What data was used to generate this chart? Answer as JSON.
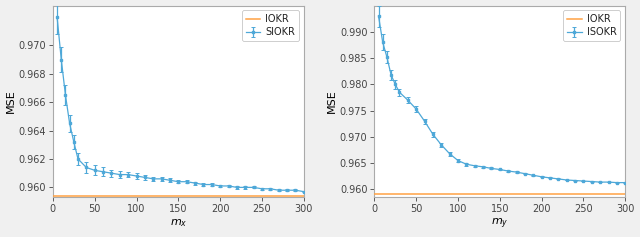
{
  "left": {
    "xlabel": "$m_x$",
    "ylabel": "MSE",
    "legend_labels": [
      "IOKR",
      "SIOKR"
    ],
    "iokr_value": 0.9594,
    "x_range": [
      0,
      300
    ],
    "ylim": [
      0.9593,
      0.9728
    ],
    "yticks": [
      0.96,
      0.962,
      0.964,
      0.966,
      0.968,
      0.97
    ],
    "curve_x": [
      5,
      10,
      15,
      20,
      25,
      30,
      40,
      50,
      60,
      70,
      80,
      90,
      100,
      110,
      120,
      130,
      140,
      150,
      160,
      170,
      180,
      190,
      200,
      210,
      220,
      230,
      240,
      250,
      260,
      270,
      280,
      290,
      300
    ],
    "curve_y": [
      0.972,
      0.969,
      0.9665,
      0.9645,
      0.9632,
      0.962,
      0.9614,
      0.9612,
      0.9611,
      0.961,
      0.9609,
      0.9609,
      0.9608,
      0.9607,
      0.9606,
      0.9606,
      0.9605,
      0.9604,
      0.9604,
      0.9603,
      0.9602,
      0.9602,
      0.9601,
      0.9601,
      0.96,
      0.96,
      0.96,
      0.9599,
      0.9599,
      0.9598,
      0.9598,
      0.9598,
      0.9597
    ],
    "curve_err": [
      0.0012,
      0.0009,
      0.0007,
      0.0006,
      0.0005,
      0.00045,
      0.0004,
      0.00035,
      0.0003,
      0.00025,
      0.00022,
      0.0002,
      0.00018,
      0.00016,
      0.00015,
      0.00014,
      0.00013,
      0.00012,
      0.00011,
      0.0001,
      0.0001,
      9e-05,
      9e-05,
      8e-05,
      8e-05,
      8e-05,
      7e-05,
      7e-05,
      7e-05,
      7e-05,
      7e-05,
      6e-05,
      6e-05
    ]
  },
  "right": {
    "xlabel": "$m_y$",
    "ylabel": "MSE",
    "legend_labels": [
      "IOKR",
      "ISOKR"
    ],
    "iokr_value": 0.9591,
    "x_range": [
      0,
      300
    ],
    "ylim": [
      0.9585,
      0.995
    ],
    "yticks": [
      0.96,
      0.965,
      0.97,
      0.975,
      0.98,
      0.985,
      0.99
    ],
    "curve_x": [
      5,
      10,
      15,
      20,
      25,
      30,
      40,
      50,
      60,
      70,
      80,
      90,
      100,
      110,
      120,
      130,
      140,
      150,
      160,
      170,
      180,
      190,
      200,
      210,
      220,
      230,
      240,
      250,
      260,
      270,
      280,
      290,
      300
    ],
    "curve_y": [
      0.993,
      0.988,
      0.9852,
      0.9818,
      0.98,
      0.9785,
      0.977,
      0.9753,
      0.973,
      0.9705,
      0.9685,
      0.9668,
      0.9655,
      0.9648,
      0.9645,
      0.9643,
      0.964,
      0.9638,
      0.9635,
      0.9633,
      0.963,
      0.9627,
      0.9624,
      0.9622,
      0.962,
      0.9618,
      0.9617,
      0.9616,
      0.9615,
      0.9614,
      0.9614,
      0.9613,
      0.9613
    ],
    "curve_err": [
      0.002,
      0.0015,
      0.0012,
      0.001,
      0.0008,
      0.0007,
      0.0006,
      0.00055,
      0.0005,
      0.00045,
      0.0004,
      0.00035,
      0.0003,
      0.00025,
      0.00022,
      0.0002,
      0.00018,
      0.00016,
      0.00014,
      0.00013,
      0.00012,
      0.00011,
      0.0001,
      0.0001,
      9e-05,
      9e-05,
      8e-05,
      8e-05,
      8e-05,
      7e-05,
      7e-05,
      7e-05,
      7e-05
    ]
  },
  "line_color": "#4EA8D8",
  "iokr_color": "#FFA040",
  "marker": "s",
  "markersize": 2.0,
  "linewidth": 0.9,
  "capsize": 1.5,
  "bg_color": "#f0f0f0",
  "axes_bg": "#ffffff"
}
